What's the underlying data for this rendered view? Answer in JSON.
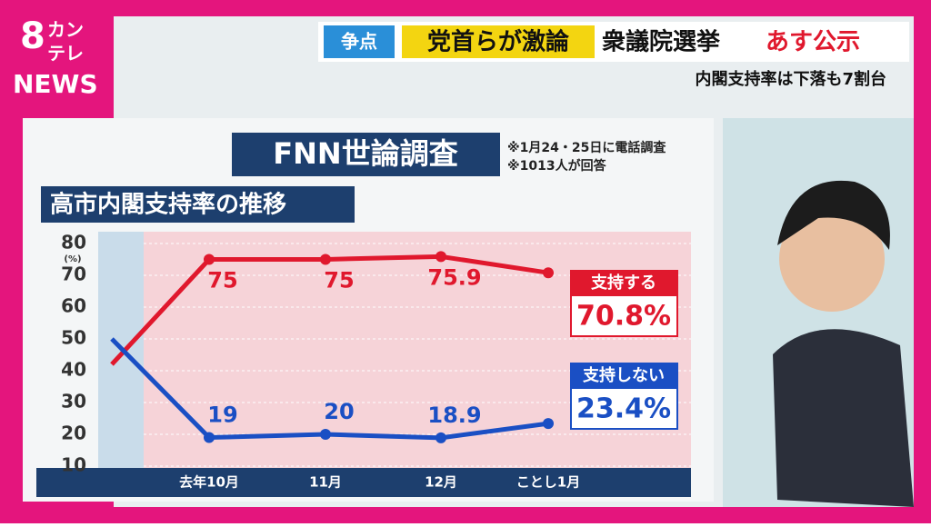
{
  "broadcast": {
    "logo_number": "8",
    "logo_line1": "カン",
    "logo_line2": "テレ",
    "logo_news": "NEWS",
    "tag": "争点",
    "headline_a": "党首らが激論",
    "headline_b": "衆議院選挙",
    "headline_c": "あす公示",
    "subheadline": "内閣支持率は下落も7割台"
  },
  "chart_data": {
    "type": "line",
    "title": "FNN世論調査",
    "notes": [
      "※1月24・25日に電話調査",
      "※1013人が回答"
    ],
    "subtitle": "高市内閣支持率の推移",
    "y_unit": "(%)",
    "categories": [
      null,
      "去年10月",
      "11月",
      "12月",
      "ことし1月"
    ],
    "series": [
      {
        "name": "支持する",
        "color": "#e0182d",
        "values": [
          42,
          75,
          75,
          75.9,
          70.8
        ],
        "value_labels": [
          null,
          "75",
          "75",
          "75.9",
          "70.8%"
        ]
      },
      {
        "name": "支持しない",
        "color": "#1a4fc4",
        "values": [
          50,
          19,
          20,
          18.9,
          23.4
        ],
        "value_labels": [
          null,
          "19",
          "20",
          "18.9",
          "23.4%"
        ]
      }
    ],
    "ylim": [
      10,
      80
    ],
    "yticks": [
      10,
      20,
      30,
      40,
      50,
      60,
      70,
      80
    ],
    "grid": true
  }
}
